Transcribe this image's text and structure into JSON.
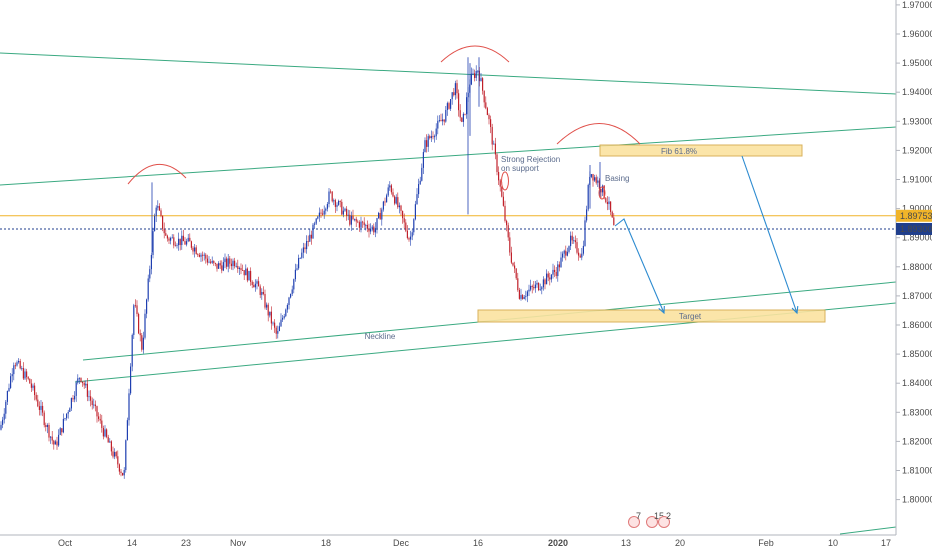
{
  "chart_data": {
    "type": "candlestick",
    "y_ticks": [
      "1.97000",
      "1.96000",
      "1.95000",
      "1.94000",
      "1.93000",
      "1.92000",
      "1.91000",
      "1.90000",
      "1.89000",
      "1.88000",
      "1.87000",
      "1.86000",
      "1.85000",
      "1.84000",
      "1.83000",
      "1.82000",
      "1.81000",
      "1.80000"
    ],
    "x_ticks": [
      "Oct",
      "14",
      "23",
      "Nov",
      "18",
      "Dec",
      "16",
      "2020",
      "13",
      "20",
      "Feb",
      "10",
      "17"
    ],
    "ylim": [
      1.795,
      1.972
    ],
    "price_tags": [
      {
        "label": "1.89753",
        "value": 1.89753,
        "color": "#f0b429"
      },
      {
        "label": "1.89300",
        "value": 1.893,
        "color": "#1f3e8c"
      }
    ],
    "annotations": {
      "fib": "Fib 61.8%",
      "target": "Target",
      "neckline": "Neckline",
      "rejection": "Strong Rejection\non support",
      "basing": "Basing"
    },
    "event_badges": {
      "left": "7",
      "mid": "15",
      "right": "2"
    },
    "colors": {
      "up": "#1f3fb0",
      "down": "#c0202a",
      "trendline": "#3aa981",
      "zone_fill": "#fbe3a0",
      "zone_stroke": "#d4a94a",
      "arrow": "#2d8bd0",
      "arc": "#e0504a"
    }
  }
}
